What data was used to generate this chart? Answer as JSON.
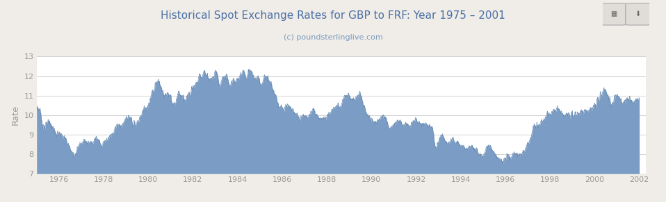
{
  "title": "Historical Spot Exchange Rates for GBP to FRF: Year 1975 – 2001",
  "subtitle": "(c) poundsterlinglive.com",
  "ylabel": "Rate",
  "xlim_start": 1975.0,
  "xlim_end": 2002.3,
  "ylim_bottom": 7,
  "ylim_top": 13,
  "yticks": [
    7,
    8,
    9,
    10,
    11,
    12,
    13
  ],
  "xticks": [
    1976,
    1978,
    1980,
    1982,
    1984,
    1986,
    1988,
    1990,
    1992,
    1994,
    1996,
    1998,
    2000,
    2002
  ],
  "fill_color": "#7b9dc5",
  "line_color": "#5f84ae",
  "bg_color": "#ffffff",
  "outer_bg": "#f0ede8",
  "title_color": "#4a6fa5",
  "subtitle_color": "#7a9abf",
  "tick_color": "#999999",
  "grid_color": "#cccccc"
}
